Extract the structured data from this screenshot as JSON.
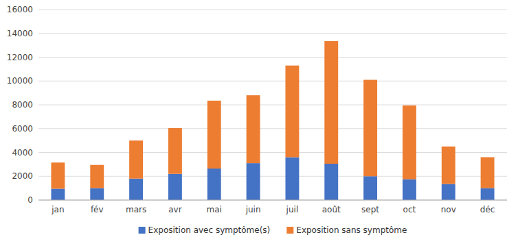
{
  "chart_data": {
    "type": "bar",
    "stacked": true,
    "categories": [
      "jan",
      "fév",
      "mars",
      "avr",
      "mai",
      "juin",
      "juil",
      "août",
      "sept",
      "oct",
      "nov",
      "déc"
    ],
    "series": [
      {
        "name": "Exposition avec symptôme(s)",
        "color": "#4472C4",
        "values": [
          950,
          1000,
          1800,
          2200,
          2650,
          3100,
          3600,
          3050,
          2000,
          1750,
          1350,
          1000
        ]
      },
      {
        "name": "Exposition sans symptôme",
        "color": "#ED7D31",
        "values": [
          2200,
          1950,
          3200,
          3850,
          5700,
          5700,
          7700,
          10300,
          8100,
          6200,
          3150,
          2600
        ]
      }
    ],
    "ylim": [
      0,
      16000
    ],
    "yticks": [
      0,
      2000,
      4000,
      6000,
      8000,
      10000,
      12000,
      14000,
      16000
    ],
    "grid": true,
    "legend": "bottom"
  }
}
